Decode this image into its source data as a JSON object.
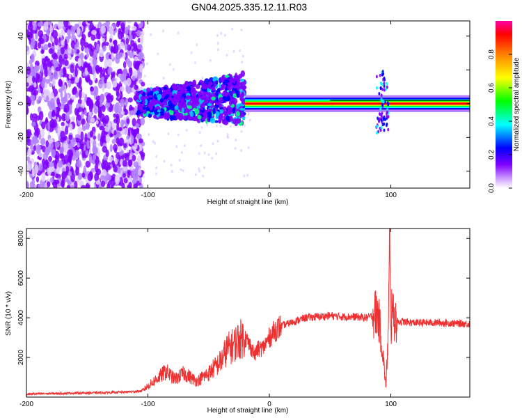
{
  "title": "GN04.2025.335.12.11.R03",
  "chart_data": [
    {
      "type": "heatmap",
      "xlabel": "Height of straight line (km)",
      "ylabel": "Frequency (Hz)",
      "xlim": [
        -200,
        165
      ],
      "ylim": [
        -50,
        49
      ],
      "xticks": [
        "-200",
        "-100",
        "0",
        "100"
      ],
      "yticks": [
        "40",
        "20",
        "0",
        "-20",
        "-40"
      ],
      "colorbar": {
        "label": "Normalized spectral amplitude",
        "range": [
          0,
          1
        ],
        "ticks": [
          "0.0",
          "0.2",
          "0.4",
          "0.6",
          "0.8"
        ],
        "colors": [
          "#ffffff",
          "#cc99ff",
          "#7f00ff",
          "#0000ff",
          "#00ffff",
          "#00ff00",
          "#ffff00",
          "#ff8000",
          "#ff0000",
          "#ff00aa"
        ]
      },
      "regions": [
        {
          "x": [
            -200,
            -103
          ],
          "f": [
            -50,
            49
          ],
          "amplitude": 0.12,
          "pattern": "scattered noise"
        },
        {
          "x": [
            -108,
            -20
          ],
          "f": [
            -12,
            14
          ],
          "amplitude": 0.3,
          "pattern": "speckled band widening with height"
        },
        {
          "x": [
            -20,
            165
          ],
          "f": [
            -2,
            2
          ],
          "amplitude": 0.95,
          "pattern": "narrow strong carrier line"
        },
        {
          "x": [
            88,
            98
          ],
          "f": [
            -18,
            20
          ],
          "amplitude": 0.25,
          "pattern": "spike"
        }
      ],
      "grid": false
    },
    {
      "type": "line",
      "xlabel": "Height of straight line (km)",
      "ylabel": "SNR (10 * v/v)",
      "xlim": [
        -200,
        165
      ],
      "ylim": [
        0,
        8500
      ],
      "xticks": [
        "-200",
        "-100",
        "0",
        "100"
      ],
      "yticks": [
        "2000",
        "4000",
        "6000",
        "8000"
      ],
      "color": "#f03030",
      "x": [
        -200,
        -180,
        -160,
        -140,
        -120,
        -105,
        -95,
        -85,
        -78,
        -70,
        -60,
        -50,
        -40,
        -35,
        -30,
        -25,
        -20,
        -17,
        -15,
        -12,
        -10,
        -5,
        0,
        5,
        10,
        15,
        20,
        30,
        40,
        50,
        60,
        70,
        80,
        85,
        88,
        90,
        92,
        94,
        96,
        98,
        99,
        100,
        101,
        102,
        104,
        106,
        110,
        120,
        140,
        160,
        165
      ],
      "y": [
        150,
        180,
        200,
        220,
        250,
        300,
        800,
        1300,
        900,
        1200,
        800,
        1200,
        1800,
        2400,
        2600,
        2900,
        3000,
        2700,
        2500,
        2100,
        2400,
        2500,
        3000,
        3400,
        3600,
        3700,
        3800,
        4000,
        4050,
        4100,
        4050,
        4050,
        4000,
        4100,
        4300,
        4000,
        3000,
        1800,
        500,
        3500,
        8000,
        2500,
        5500,
        4000,
        3900,
        3800,
        3800,
        3750,
        3750,
        3700,
        3700
      ],
      "grid": false
    }
  ]
}
